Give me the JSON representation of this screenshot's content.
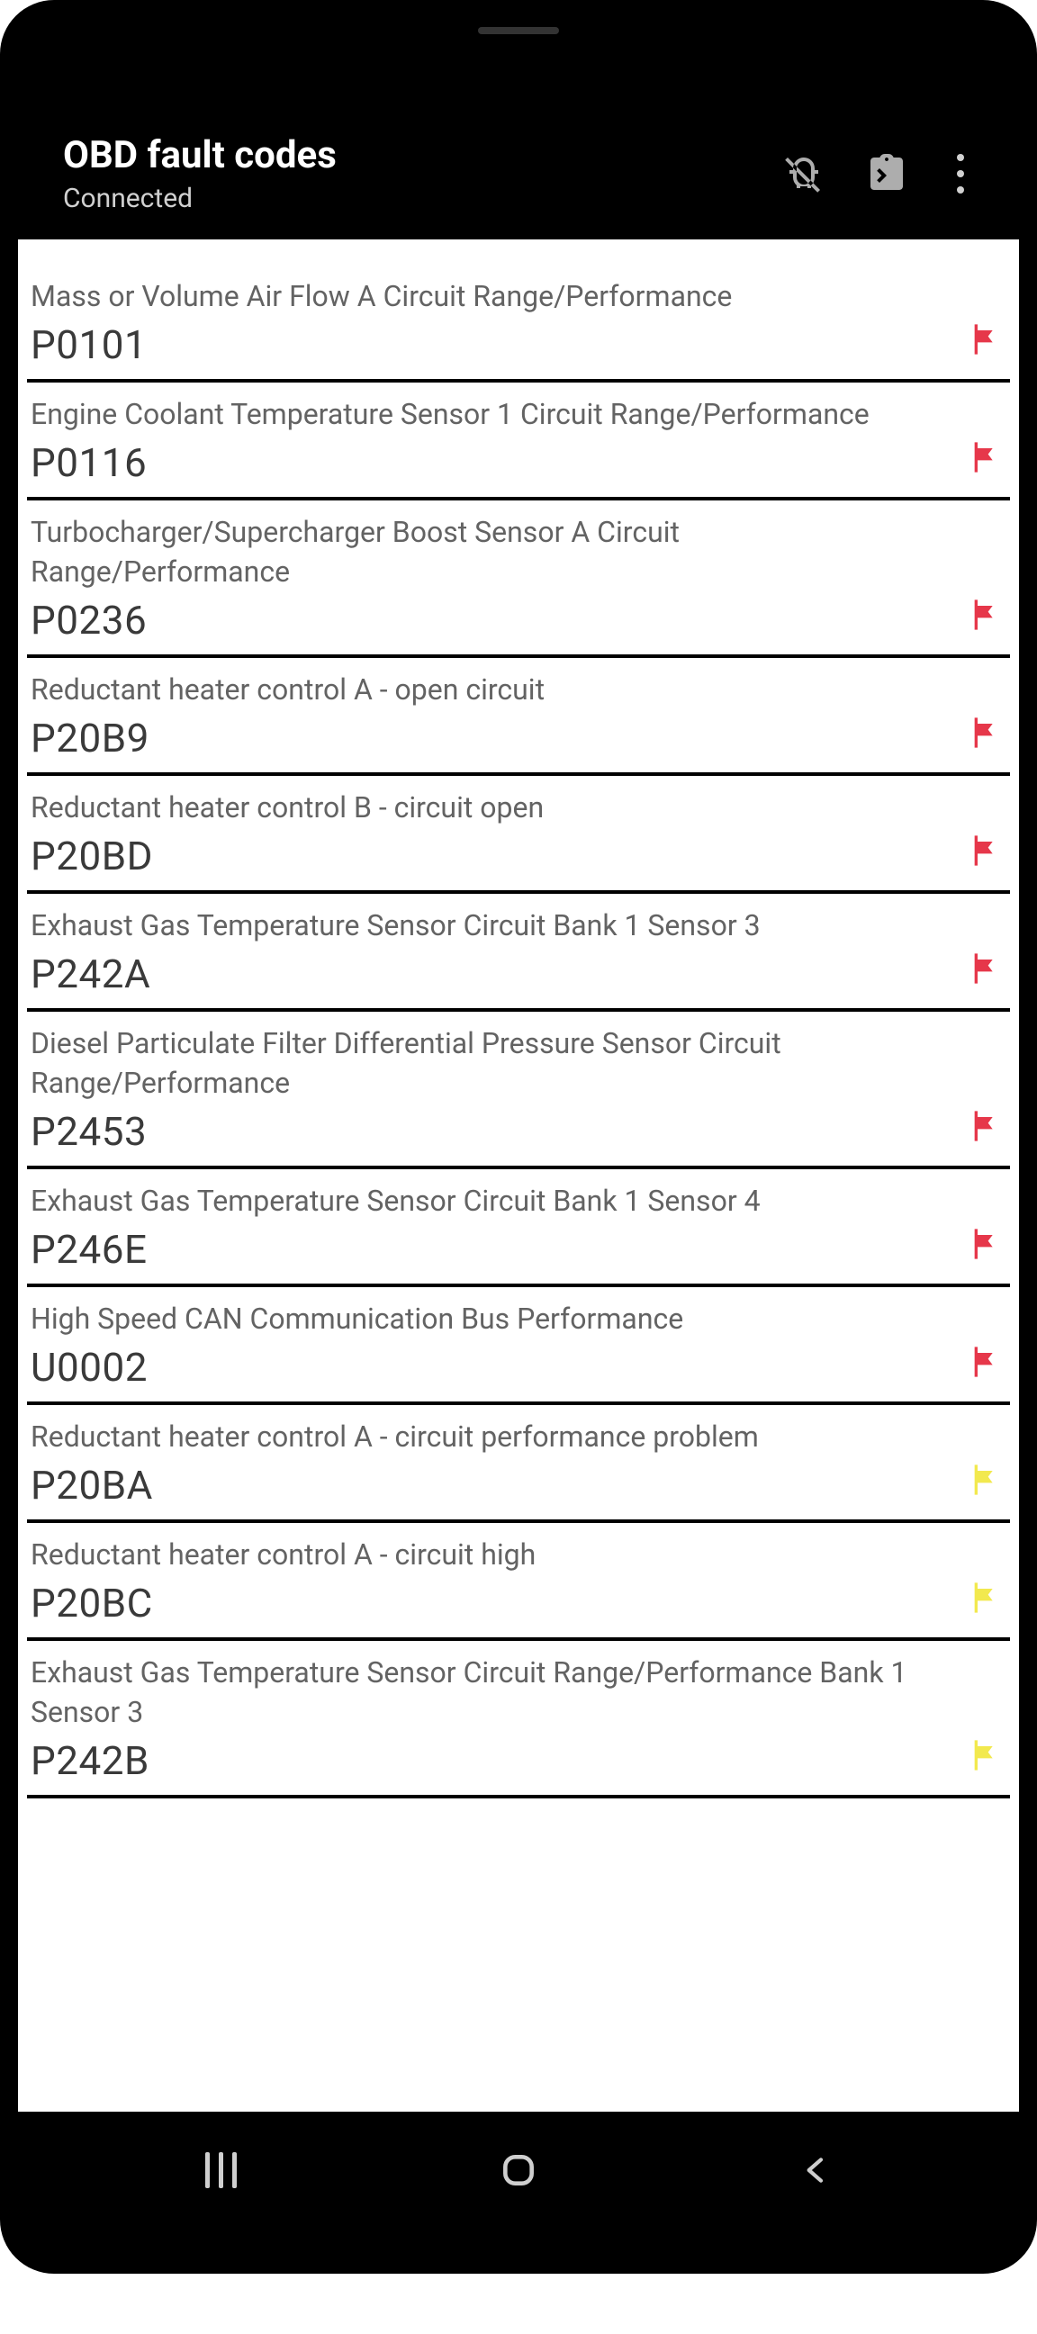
{
  "header": {
    "title": "OBD fault codes",
    "subtitle": "Connected"
  },
  "colors": {
    "background": "#ffffff",
    "header_bg": "#000000",
    "header_text": "#ffffff",
    "subtitle_text": "#d0d0d0",
    "icon_color": "#adadad",
    "desc_color": "#636363",
    "code_color": "#3a3a3a",
    "divider": "#000000",
    "flag_red": "#e6374a",
    "flag_yellow": "#f2e94e"
  },
  "typography": {
    "title_size": 42,
    "subtitle_size": 30,
    "desc_size": 32,
    "code_size": 44
  },
  "faults": [
    {
      "description": "Mass or Volume Air Flow A Circuit Range/Performance",
      "code": "P0101",
      "flag": "red"
    },
    {
      "description": "Engine Coolant Temperature Sensor 1 Circuit Range/Performance",
      "code": "P0116",
      "flag": "red"
    },
    {
      "description": "Turbocharger/Supercharger Boost Sensor A Circuit Range/Performance",
      "code": "P0236",
      "flag": "red"
    },
    {
      "description": "Reductant heater control A - open circuit",
      "code": "P20B9",
      "flag": "red"
    },
    {
      "description": "Reductant heater control B - circuit open",
      "code": "P20BD",
      "flag": "red"
    },
    {
      "description": "Exhaust Gas Temperature Sensor Circuit Bank 1 Sensor 3",
      "code": "P242A",
      "flag": "red"
    },
    {
      "description": "Diesel Particulate Filter Differential Pressure Sensor Circuit Range/Performance",
      "code": "P2453",
      "flag": "red"
    },
    {
      "description": "Exhaust Gas Temperature Sensor Circuit Bank 1 Sensor 4",
      "code": "P246E",
      "flag": "red"
    },
    {
      "description": "High Speed CAN Communication Bus Performance",
      "code": "U0002",
      "flag": "red"
    },
    {
      "description": "Reductant heater control A - circuit performance problem",
      "code": "P20BA",
      "flag": "yellow"
    },
    {
      "description": "Reductant heater control A - circuit high",
      "code": "P20BC",
      "flag": "yellow"
    },
    {
      "description": "Exhaust Gas Temperature Sensor Circuit Range/Performance Bank 1 Sensor 3",
      "code": "P242B",
      "flag": "yellow"
    }
  ]
}
